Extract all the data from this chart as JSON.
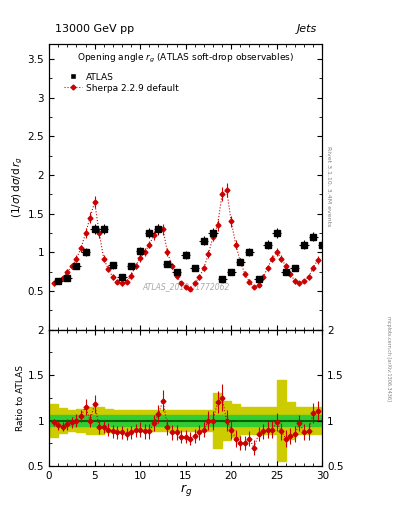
{
  "title_top": "13000 GeV pp",
  "title_right": "Jets",
  "plot_title": "Opening angle r$_g$ (ATLAS soft-drop observables)",
  "ylabel_main": "(1/σ) dσ/d r_g",
  "ylabel_ratio": "Ratio to ATLAS",
  "xlabel": "r_g",
  "watermark": "ATLAS_2019_I1772062",
  "rivet_label": "Rivet 3.1.10, 3.4M events",
  "arxiv_label": "mcplots.cern.ch [arXiv:1306.3436]",
  "xlim": [
    0,
    30
  ],
  "ylim_main": [
    0,
    3.7
  ],
  "ylim_ratio": [
    0.5,
    2.0
  ],
  "atlas_x": [
    1,
    2,
    3,
    4,
    5,
    6,
    7,
    8,
    9,
    10,
    11,
    12,
    13,
    14,
    15,
    16,
    17,
    18,
    19,
    20,
    21,
    22,
    23,
    24,
    25,
    26,
    27,
    28,
    29,
    30
  ],
  "atlas_y": [
    0.63,
    0.67,
    0.82,
    1.0,
    1.3,
    1.3,
    0.83,
    0.68,
    0.82,
    1.02,
    1.25,
    1.3,
    0.85,
    0.75,
    0.97,
    0.8,
    1.15,
    1.25,
    0.65,
    0.75,
    0.88,
    1.0,
    0.65,
    1.1,
    1.25,
    0.75,
    0.8,
    1.1,
    1.2,
    1.1
  ],
  "atlas_xerr": [
    0.5,
    0.5,
    0.5,
    0.5,
    0.5,
    0.5,
    0.5,
    0.5,
    0.5,
    0.5,
    0.5,
    0.5,
    0.5,
    0.5,
    0.5,
    0.5,
    0.5,
    0.5,
    0.5,
    0.5,
    0.5,
    0.5,
    0.5,
    0.5,
    0.5,
    0.5,
    0.5,
    0.5,
    0.5,
    0.5
  ],
  "atlas_yerr": [
    0.03,
    0.03,
    0.04,
    0.05,
    0.06,
    0.06,
    0.04,
    0.04,
    0.04,
    0.05,
    0.06,
    0.06,
    0.04,
    0.04,
    0.05,
    0.04,
    0.06,
    0.06,
    0.04,
    0.04,
    0.05,
    0.05,
    0.04,
    0.06,
    0.06,
    0.04,
    0.04,
    0.06,
    0.06,
    0.06
  ],
  "sherpa_x": [
    0.5,
    1.0,
    1.5,
    2.0,
    2.5,
    3.0,
    3.5,
    4.0,
    4.5,
    5.0,
    5.5,
    6.0,
    6.5,
    7.0,
    7.5,
    8.0,
    8.5,
    9.0,
    9.5,
    10.0,
    10.5,
    11.0,
    11.5,
    12.0,
    12.5,
    13.0,
    13.5,
    14.0,
    14.5,
    15.0,
    15.5,
    16.0,
    16.5,
    17.0,
    17.5,
    18.0,
    18.5,
    19.0,
    19.5,
    20.0,
    20.5,
    21.0,
    21.5,
    22.0,
    22.5,
    23.0,
    23.5,
    24.0,
    24.5,
    25.0,
    25.5,
    26.0,
    26.5,
    27.0,
    27.5,
    28.0,
    28.5,
    29.0,
    29.5
  ],
  "sherpa_y": [
    0.6,
    0.63,
    0.67,
    0.74,
    0.82,
    0.92,
    1.05,
    1.25,
    1.45,
    1.65,
    1.25,
    0.92,
    0.78,
    0.68,
    0.62,
    0.6,
    0.62,
    0.7,
    0.82,
    0.93,
    1.0,
    1.1,
    1.22,
    1.3,
    1.3,
    1.0,
    0.82,
    0.7,
    0.6,
    0.55,
    0.53,
    0.6,
    0.68,
    0.8,
    0.98,
    1.2,
    1.35,
    1.75,
    1.8,
    1.4,
    1.1,
    0.88,
    0.72,
    0.62,
    0.55,
    0.58,
    0.68,
    0.8,
    0.92,
    1.0,
    0.92,
    0.82,
    0.72,
    0.63,
    0.6,
    0.63,
    0.68,
    0.8,
    0.9
  ],
  "sherpa_yerr": [
    0.03,
    0.03,
    0.03,
    0.04,
    0.04,
    0.05,
    0.05,
    0.06,
    0.07,
    0.08,
    0.06,
    0.05,
    0.04,
    0.04,
    0.03,
    0.03,
    0.03,
    0.04,
    0.04,
    0.05,
    0.05,
    0.05,
    0.06,
    0.07,
    0.07,
    0.05,
    0.04,
    0.04,
    0.03,
    0.03,
    0.03,
    0.03,
    0.04,
    0.04,
    0.05,
    0.06,
    0.07,
    0.09,
    0.09,
    0.07,
    0.06,
    0.05,
    0.04,
    0.03,
    0.03,
    0.03,
    0.04,
    0.04,
    0.05,
    0.05,
    0.05,
    0.04,
    0.04,
    0.04,
    0.03,
    0.03,
    0.04,
    0.04,
    0.05
  ],
  "ratio_y": [
    0.98,
    0.95,
    0.93,
    0.96,
    0.98,
    1.0,
    1.05,
    1.15,
    1.0,
    1.18,
    0.93,
    0.93,
    0.9,
    0.88,
    0.87,
    0.87,
    0.85,
    0.87,
    0.89,
    0.9,
    0.88,
    0.88,
    0.97,
    1.07,
    1.22,
    0.93,
    0.87,
    0.87,
    0.82,
    0.82,
    0.8,
    0.83,
    0.87,
    0.9,
    1.0,
    1.0,
    1.2,
    1.25,
    1.0,
    0.9,
    0.8,
    0.75,
    0.75,
    0.8,
    0.7,
    0.85,
    0.88,
    0.9,
    0.9,
    0.98,
    0.88,
    0.8,
    0.83,
    0.85,
    0.97,
    0.87,
    0.88,
    1.08,
    1.1
  ],
  "ratio_yerr": [
    0.04,
    0.05,
    0.05,
    0.06,
    0.06,
    0.07,
    0.07,
    0.09,
    0.07,
    0.1,
    0.08,
    0.07,
    0.07,
    0.07,
    0.07,
    0.07,
    0.07,
    0.07,
    0.07,
    0.08,
    0.08,
    0.08,
    0.09,
    0.1,
    0.12,
    0.09,
    0.08,
    0.08,
    0.07,
    0.07,
    0.07,
    0.08,
    0.08,
    0.08,
    0.1,
    0.1,
    0.12,
    0.15,
    0.12,
    0.1,
    0.09,
    0.08,
    0.08,
    0.08,
    0.08,
    0.08,
    0.08,
    0.09,
    0.09,
    0.1,
    0.09,
    0.09,
    0.09,
    0.09,
    0.09,
    0.09,
    0.09,
    0.11,
    0.11
  ],
  "band_edges": [
    0,
    1,
    2,
    3,
    4,
    5,
    6,
    7,
    8,
    9,
    10,
    11,
    12,
    13,
    14,
    15,
    16,
    17,
    18,
    19,
    20,
    21,
    22,
    23,
    24,
    25,
    26,
    27,
    28,
    29,
    30
  ],
  "band_green_lo": [
    0.94,
    0.94,
    0.94,
    0.94,
    0.94,
    0.94,
    0.94,
    0.94,
    0.94,
    0.94,
    0.94,
    0.94,
    0.94,
    0.94,
    0.94,
    0.94,
    0.94,
    0.94,
    0.94,
    0.94,
    0.94,
    0.94,
    0.94,
    0.94,
    0.94,
    0.94,
    0.94,
    0.94,
    0.94,
    0.94,
    0.94
  ],
  "band_green_hi": [
    1.06,
    1.06,
    1.06,
    1.06,
    1.06,
    1.06,
    1.06,
    1.06,
    1.06,
    1.06,
    1.06,
    1.06,
    1.06,
    1.06,
    1.06,
    1.06,
    1.06,
    1.06,
    1.06,
    1.06,
    1.06,
    1.06,
    1.06,
    1.06,
    1.06,
    1.06,
    1.06,
    1.06,
    1.06,
    1.06,
    1.06
  ],
  "band_yellow_lo": [
    0.82,
    0.86,
    0.88,
    0.87,
    0.85,
    0.85,
    0.87,
    0.88,
    0.88,
    0.88,
    0.88,
    0.88,
    0.88,
    0.88,
    0.88,
    0.88,
    0.88,
    0.88,
    0.7,
    0.78,
    0.82,
    0.85,
    0.85,
    0.85,
    0.85,
    0.55,
    0.8,
    0.85,
    0.85,
    0.85,
    0.85
  ],
  "band_yellow_hi": [
    1.18,
    1.14,
    1.12,
    1.13,
    1.15,
    1.15,
    1.13,
    1.12,
    1.12,
    1.12,
    1.12,
    1.12,
    1.12,
    1.12,
    1.12,
    1.12,
    1.12,
    1.12,
    1.3,
    1.22,
    1.18,
    1.15,
    1.15,
    1.15,
    1.15,
    1.45,
    1.2,
    1.15,
    1.15,
    1.15,
    1.15
  ],
  "color_atlas": "#000000",
  "color_sherpa": "#cc0000",
  "color_green": "#33cc33",
  "color_yellow": "#cccc00",
  "background": "#ffffff",
  "xticks": [
    0,
    5,
    10,
    15,
    20,
    25,
    30
  ],
  "yticks_main": [
    0.5,
    1.0,
    1.5,
    2.0,
    2.5,
    3.0,
    3.5
  ],
  "yticks_ratio": [
    0.5,
    1.0,
    1.5,
    2.0
  ]
}
